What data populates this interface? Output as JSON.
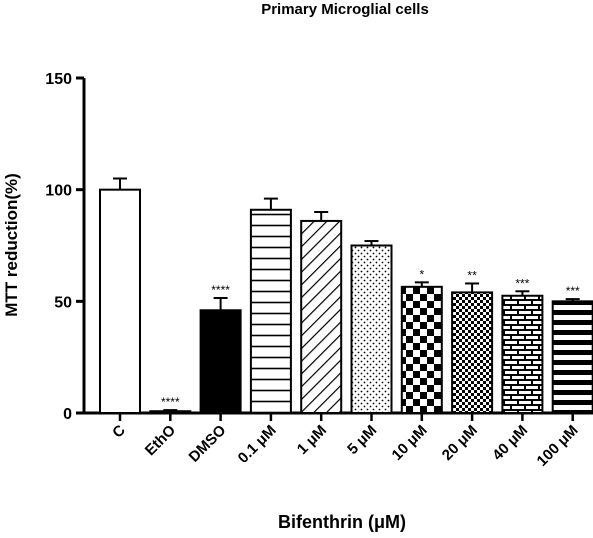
{
  "chart_data": {
    "type": "bar",
    "title": "Primary Microglial cells",
    "xlabel": "Bifenthrin (μM)",
    "ylabel": "MTT reduction(%)",
    "ylim": [
      0,
      150
    ],
    "yticks": [
      "0",
      "50",
      "100",
      "150"
    ],
    "categories": [
      "C",
      "EthO",
      "DMSO",
      "0.1 μM",
      "1 μM",
      "5 μM",
      "10 μM",
      "20 μM",
      "40 μM",
      "100 μM"
    ],
    "values": [
      100,
      0.8,
      46,
      91,
      86,
      75,
      56.5,
      54,
      52.5,
      50
    ],
    "errors": [
      5,
      0.5,
      5.5,
      5,
      4,
      2,
      2,
      4,
      2,
      1
    ],
    "significance": [
      "",
      "****",
      "****",
      "",
      "",
      "",
      "*",
      "**",
      "***",
      "***"
    ],
    "patterns": [
      "white",
      "white",
      "black",
      "horizontal-lines",
      "diagonal-lines",
      "dots",
      "checker",
      "small-checker",
      "brick",
      "thick-horizontal-lines"
    ],
    "grid": false,
    "legend": "none"
  }
}
